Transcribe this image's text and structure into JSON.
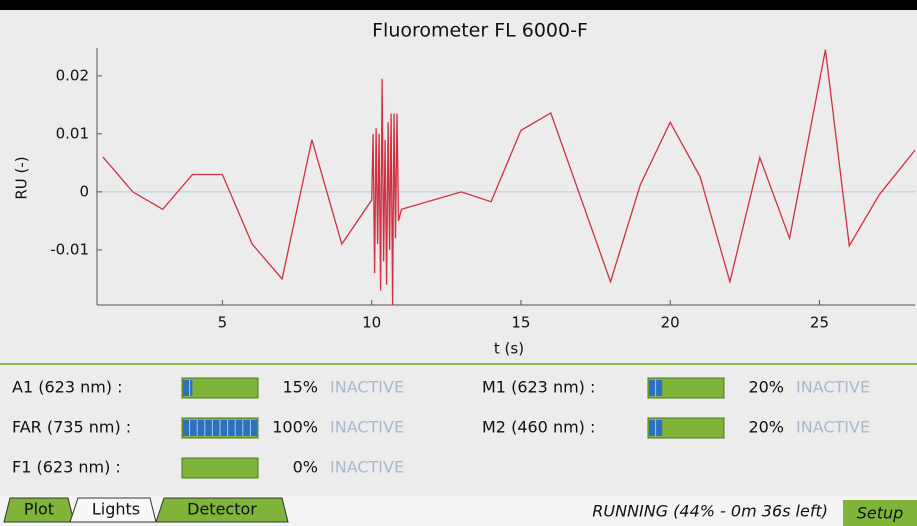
{
  "chart_data": {
    "type": "line",
    "title": "Fluorometer FL 6000-F",
    "x_label": "t (s)",
    "y_label": "RU (-)",
    "x": [
      1,
      2,
      3,
      4,
      5,
      6,
      7,
      8,
      9,
      10,
      10.05,
      10.1,
      10.15,
      10.2,
      10.25,
      10.3,
      10.35,
      10.4,
      10.45,
      10.5,
      10.55,
      10.6,
      10.65,
      10.7,
      10.75,
      10.8,
      10.85,
      10.9,
      11,
      13,
      14,
      15,
      16,
      18,
      19,
      20,
      21,
      22,
      23,
      24,
      25.2,
      26,
      27,
      28.2
    ],
    "series": [
      {
        "name": "RU",
        "color": "#d03040",
        "values": [
          0.006,
          0,
          -0.003,
          0.003,
          0.003,
          -0.009,
          -0.015,
          0.009,
          -0.009,
          -0.0014,
          0.01,
          -0.014,
          0.011,
          -0.009,
          0.01,
          -0.017,
          0.0195,
          -0.012,
          0.009,
          -0.016,
          0.012,
          -0.01,
          0.0135,
          -0.0195,
          0.0135,
          -0.008,
          0.0135,
          -0.005,
          -0.003,
          0,
          -0.0017,
          0.0106,
          0.0136,
          -0.0155,
          0.0012,
          0.012,
          0.0026,
          -0.0155,
          0.0059,
          -0.008,
          0.0245,
          -0.0093,
          -0.0005,
          0.0072
        ]
      }
    ],
    "xlim": [
      0.8,
      28.2
    ],
    "xticks": [
      5,
      10,
      15,
      20,
      25
    ],
    "ylim": [
      -0.0195,
      0.0248
    ],
    "yticks": [
      0.02,
      0.01,
      0,
      -0.01
    ]
  },
  "lights": [
    {
      "label": "A1 (623 nm) :",
      "value": 15,
      "value_label": "15%",
      "status": "INACTIVE"
    },
    {
      "label": "FAR (735 nm) :",
      "value": 100,
      "value_label": "100%",
      "status": "INACTIVE"
    },
    {
      "label": "F1 (623 nm) :",
      "value": 0,
      "value_label": "0%",
      "status": "INACTIVE"
    },
    {
      "label": "M1 (623 nm) :",
      "value": 20,
      "value_label": "20%",
      "status": "INACTIVE"
    },
    {
      "label": "M2 (460 nm) :",
      "value": 20,
      "value_label": "20%",
      "status": "INACTIVE"
    }
  ],
  "tabs": [
    "Plot",
    "Lights",
    "Detector"
  ],
  "status": "RUNNING (44% - 0m 36s left)",
  "setup": "Setup"
}
